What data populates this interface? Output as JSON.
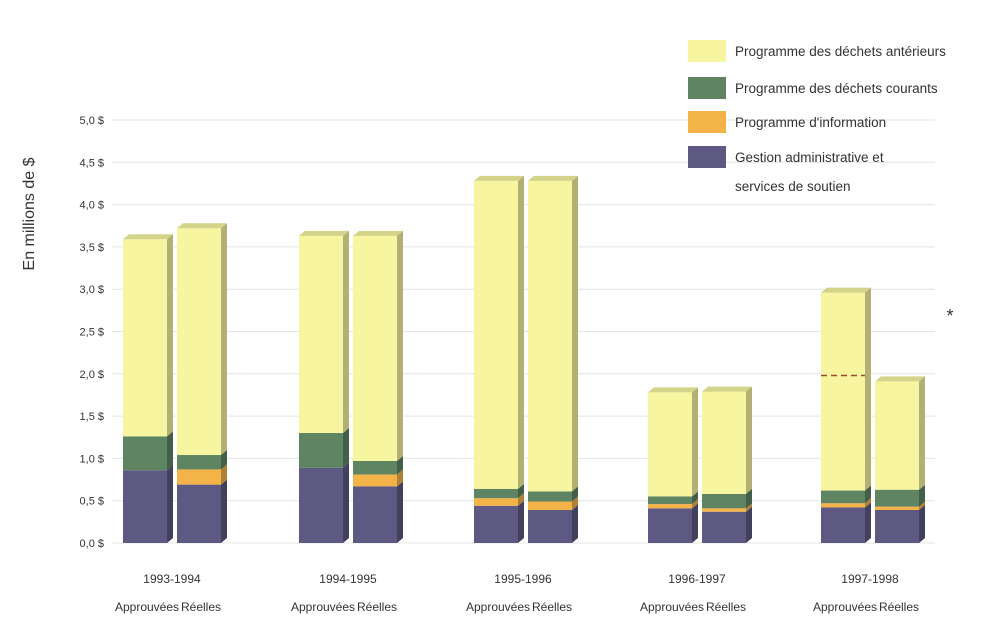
{
  "chart_data": {
    "type": "bar",
    "title": "",
    "ylabel": "En millions de $",
    "ylim": [
      0,
      5.0
    ],
    "yticks": [
      "0,0 $",
      "0,5 $",
      "1,0 $",
      "1,5 $",
      "2,0 $",
      "2,5 $",
      "3,0 $",
      "3,5 $",
      "4,0 $",
      "4,5 $",
      "5,0 $"
    ],
    "grid": true,
    "stacked": true,
    "legend_position": "top-right",
    "categories": [
      "1993-1994",
      "1994-1995",
      "1995-1996",
      "1996-1997",
      "1997-1998"
    ],
    "sub_categories": [
      "Approuvées",
      "Réelles"
    ],
    "series": [
      {
        "name": "Gestion administrative et services de soutien",
        "color": "#5d5983",
        "values": [
          [
            0.86,
            0.69
          ],
          [
            0.89,
            0.67
          ],
          [
            0.44,
            0.39
          ],
          [
            0.41,
            0.37
          ],
          [
            0.42,
            0.39
          ]
        ]
      },
      {
        "name": "Programme d'information",
        "color": "#f4b349",
        "values": [
          [
            0.0,
            0.18
          ],
          [
            0.0,
            0.14
          ],
          [
            0.09,
            0.1
          ],
          [
            0.05,
            0.04
          ],
          [
            0.05,
            0.04
          ]
        ]
      },
      {
        "name": "Programme des déchets courants",
        "color": "#5e8462",
        "values": [
          [
            0.4,
            0.17
          ],
          [
            0.41,
            0.16
          ],
          [
            0.11,
            0.12
          ],
          [
            0.09,
            0.17
          ],
          [
            0.15,
            0.2
          ]
        ]
      },
      {
        "name": "Programme des déchets antérieurs",
        "color": "#f7f5a0",
        "values": [
          [
            2.33,
            2.68
          ],
          [
            2.33,
            2.66
          ],
          [
            3.64,
            3.67
          ],
          [
            1.23,
            1.21
          ],
          [
            2.34,
            1.28
          ]
        ]
      }
    ],
    "legend_order": [
      "Programme des déchets antérieurs",
      "Programme des déchets courants",
      "Programme d'information",
      "Gestion administrative et services de soutien"
    ],
    "annotations": [
      {
        "type": "dashed-line",
        "category": "1997-1998",
        "bar": "Approuvées",
        "value": 1.98
      },
      {
        "type": "text",
        "text": "*"
      }
    ]
  }
}
